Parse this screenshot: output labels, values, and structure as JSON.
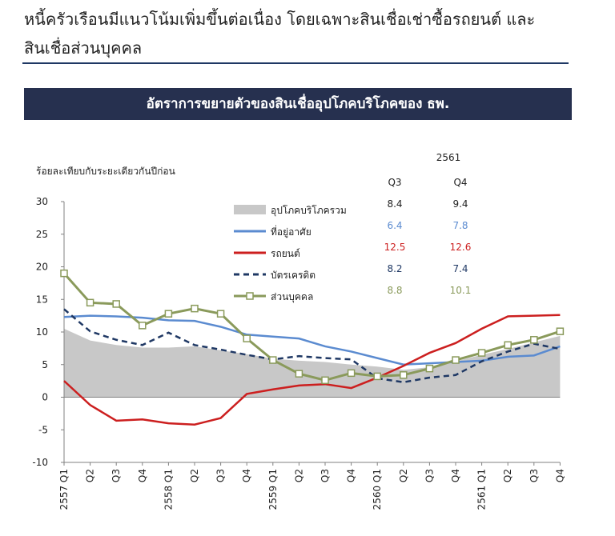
{
  "headline": {
    "line1": "หนี้ครัวเรือนมีแนวโน้มเพิ่มขึ้นต่อเนื่อง โดยเฉพาะสินเชื่อเช่าซื้อรถยนต์ และ",
    "line2": "สินเชื่อส่วนบุคคล"
  },
  "banner": {
    "title": "อัตราการขยายตัวของสินเชื่ออุปโภคบริโภคของ ธพ."
  },
  "colors": {
    "banner_bg": "#26304f",
    "area": "#c8c8c8",
    "housing": "#5b8bd0",
    "auto": "#cc1f1f",
    "credit": "#1f3864",
    "personal": "#8a9a5b"
  },
  "chart_data": {
    "type": "line",
    "title": "อัตราการขยายตัวของสินเชื่ออุปโภคบริโภคของ ธพ.",
    "ylabel": "ร้อยละเทียบกับระยะเดียวกันปีก่อน",
    "xlabel": "",
    "ylim": [
      -10,
      30
    ],
    "yticks": [
      30,
      25,
      20,
      15,
      10,
      5,
      0,
      -5,
      -10
    ],
    "grid": false,
    "legend_position": "top-center",
    "x": [
      "2557 Q1",
      "Q2",
      "Q3",
      "Q4",
      "2558 Q1",
      "Q2",
      "Q3",
      "Q4",
      "2559 Q1",
      "Q2",
      "Q3",
      "Q4",
      "2560 Q1",
      "Q2",
      "Q3",
      "Q4",
      "2561 Q1",
      "Q2",
      "Q3",
      "Q4"
    ],
    "series": [
      {
        "name": "อุปโภคบริโภครวม",
        "style": "area",
        "values": [
          10.5,
          8.7,
          8.0,
          7.6,
          7.6,
          7.8,
          7.2,
          6.6,
          5.9,
          5.6,
          5.4,
          5.0,
          4.7,
          4.2,
          4.6,
          5.5,
          6.5,
          7.4,
          8.4,
          9.4
        ]
      },
      {
        "name": "ที่อยู่อาศัย",
        "style": "line",
        "values": [
          12.3,
          12.5,
          12.4,
          12.2,
          11.8,
          11.7,
          10.8,
          9.6,
          9.3,
          9.0,
          7.8,
          7.0,
          6.0,
          5.0,
          5.2,
          5.4,
          5.6,
          6.2,
          6.4,
          7.8
        ]
      },
      {
        "name": "รถยนต์",
        "style": "line",
        "values": [
          2.5,
          -1.2,
          -3.6,
          -3.4,
          -4.0,
          -4.2,
          -3.2,
          0.5,
          1.2,
          1.8,
          2.0,
          1.4,
          3.0,
          4.8,
          6.8,
          8.3,
          10.5,
          12.4,
          12.5,
          12.6
        ]
      },
      {
        "name": "บัตรเครดิต",
        "style": "dashed",
        "values": [
          13.5,
          10.1,
          8.8,
          8.0,
          9.9,
          8.0,
          7.3,
          6.5,
          5.8,
          6.3,
          6.0,
          5.8,
          2.9,
          2.3,
          3.0,
          3.4,
          5.5,
          7.0,
          8.2,
          7.4
        ]
      },
      {
        "name": "ส่วนบุคคล",
        "style": "marker",
        "values": [
          19.0,
          14.5,
          14.3,
          11.0,
          12.8,
          13.6,
          12.8,
          9.0,
          5.7,
          3.6,
          2.6,
          3.7,
          3.2,
          3.4,
          4.4,
          5.7,
          6.8,
          8.0,
          8.8,
          10.1
        ]
      }
    ],
    "table": {
      "year": "2561",
      "columns": [
        "Q3",
        "Q4"
      ],
      "rows": [
        [
          "8.4",
          "9.4"
        ],
        [
          "6.4",
          "7.8"
        ],
        [
          "12.5",
          "12.6"
        ],
        [
          "8.2",
          "7.4"
        ],
        [
          "8.8",
          "10.1"
        ]
      ]
    }
  }
}
